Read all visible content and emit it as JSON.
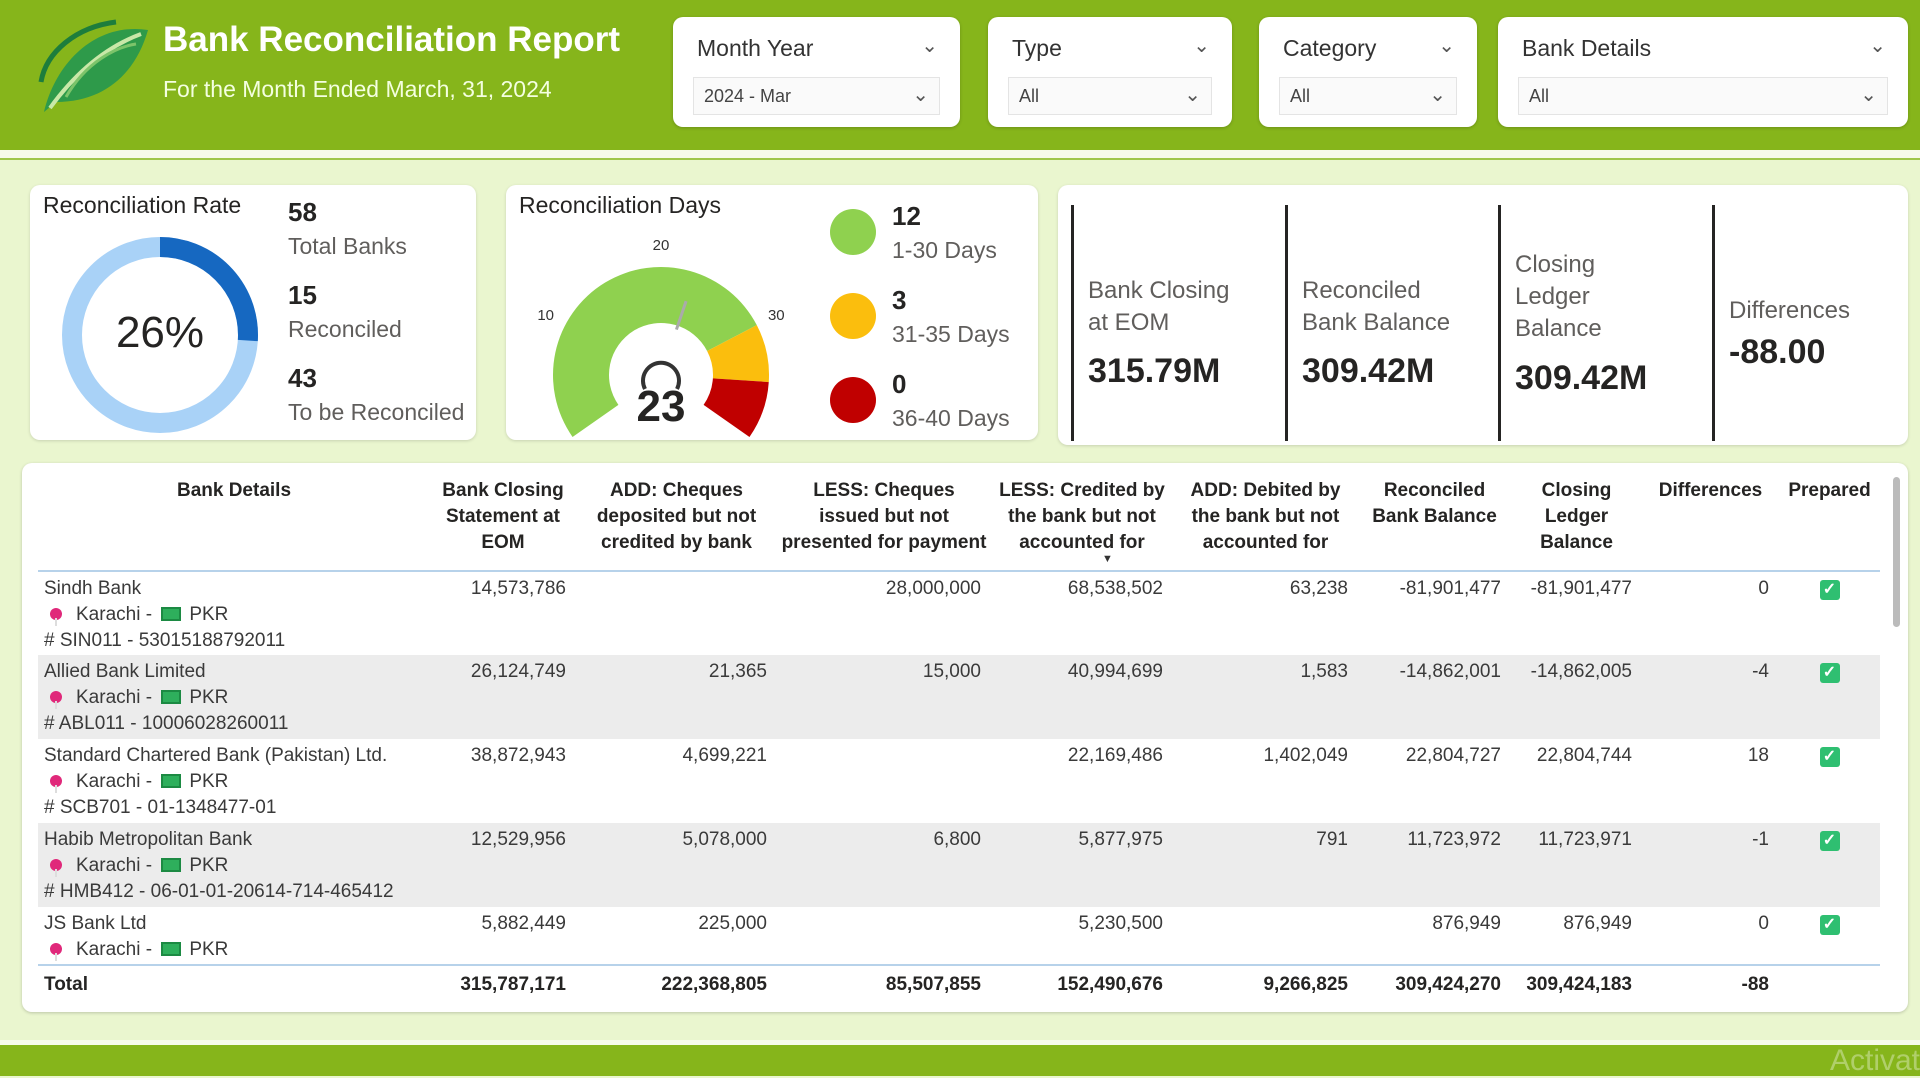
{
  "header": {
    "title": "Bank Reconciliation Report",
    "subtitle": "For the Month Ended March, 31, 2024"
  },
  "slicers": [
    {
      "label": "Month Year",
      "value": "2024 - Mar"
    },
    {
      "label": "Type",
      "value": "All"
    },
    {
      "label": "Category",
      "value": "All"
    },
    {
      "label": "Bank Details",
      "value": "All"
    }
  ],
  "rate": {
    "title": "Reconciliation Rate",
    "percent_label": "26%",
    "percent": 26,
    "total": "58",
    "total_label": "Total Banks",
    "reconciled": "15",
    "reconciled_label": "Reconciled",
    "pending": "43",
    "pending_label": "To be Reconciled",
    "colors": {
      "done": "#1668c1",
      "remaining": "#a9d2f7"
    }
  },
  "days": {
    "title": "Reconciliation Days",
    "value": 23,
    "value_label": "23",
    "min": 0,
    "max": 40,
    "ticks": [
      "0",
      "10",
      "20",
      "30",
      "40"
    ],
    "bands": [
      {
        "to": 30,
        "color": "#8fd14f"
      },
      {
        "to": 35,
        "color": "#fbbe0d"
      },
      {
        "to": 40,
        "color": "#c00000"
      }
    ],
    "legend": [
      {
        "count": "12",
        "label": "1-30 Days",
        "color": "#8fd14f"
      },
      {
        "count": "3",
        "label": "31-35 Days",
        "color": "#fbbe0d"
      },
      {
        "count": "0",
        "label": "36-40 Days",
        "color": "#c00000"
      }
    ]
  },
  "kpis": [
    {
      "label": "Bank Closing at EOM",
      "value": "315.79M"
    },
    {
      "label": "Reconciled Bank Balance",
      "value": "309.42M"
    },
    {
      "label": "Closing Ledger Balance",
      "value": "309.42M"
    },
    {
      "label": "Differences",
      "value": "-88.00"
    }
  ],
  "table": {
    "columns": [
      "Bank Details",
      "Bank Closing Statement at EOM",
      "ADD: Cheques deposited but not credited by bank",
      "LESS: Cheques issued but not presented for payment",
      "LESS: Credited by the bank but not accounted for",
      "ADD: Debited by the bank but not accounted for",
      "Reconciled Bank Balance",
      "Closing Ledger Balance",
      "Differences",
      "Prepared"
    ],
    "sorted_column": 4,
    "rows": [
      {
        "bank": "Sindh Bank",
        "city": "Karachi",
        "currency": "PKR",
        "account": "# SIN011 - 53015188792011",
        "values": [
          "14,573,786",
          "",
          "28,000,000",
          "68,538,502",
          "63,238",
          "-81,901,477",
          "-81,901,477",
          "0"
        ],
        "prepared": true
      },
      {
        "bank": "Allied Bank Limited",
        "city": "Karachi",
        "currency": "PKR",
        "account": "# ABL011 - 10006028260011",
        "values": [
          "26,124,749",
          "21,365",
          "15,000",
          "40,994,699",
          "1,583",
          "-14,862,001",
          "-14,862,005",
          "-4"
        ],
        "prepared": true
      },
      {
        "bank": "Standard Chartered Bank (Pakistan) Ltd.",
        "city": "Karachi",
        "currency": "PKR",
        "account": "# SCB701 - 01-1348477-01",
        "values": [
          "38,872,943",
          "4,699,221",
          "",
          "22,169,486",
          "1,402,049",
          "22,804,727",
          "22,804,744",
          "18"
        ],
        "prepared": true
      },
      {
        "bank": "Habib Metropolitan Bank",
        "city": "Karachi",
        "currency": "PKR",
        "account": "# HMB412 - 06-01-01-20614-714-465412",
        "values": [
          "12,529,956",
          "5,078,000",
          "6,800",
          "5,877,975",
          "791",
          "11,723,972",
          "11,723,971",
          "-1"
        ],
        "prepared": true
      },
      {
        "bank": "JS Bank Ltd",
        "city": "Karachi",
        "currency": "PKR",
        "account": "",
        "values": [
          "5,882,449",
          "225,000",
          "",
          "5,230,500",
          "",
          "876,949",
          "876,949",
          "0"
        ],
        "prepared": true
      }
    ],
    "total": {
      "label": "Total",
      "values": [
        "315,787,171",
        "222,368,805",
        "85,507,855",
        "152,490,676",
        "9,266,825",
        "309,424,270",
        "309,424,183",
        "-88"
      ]
    }
  },
  "watermark": "Activat",
  "colors": {
    "brand": "#86b51b",
    "background": "#eaf6cf"
  }
}
